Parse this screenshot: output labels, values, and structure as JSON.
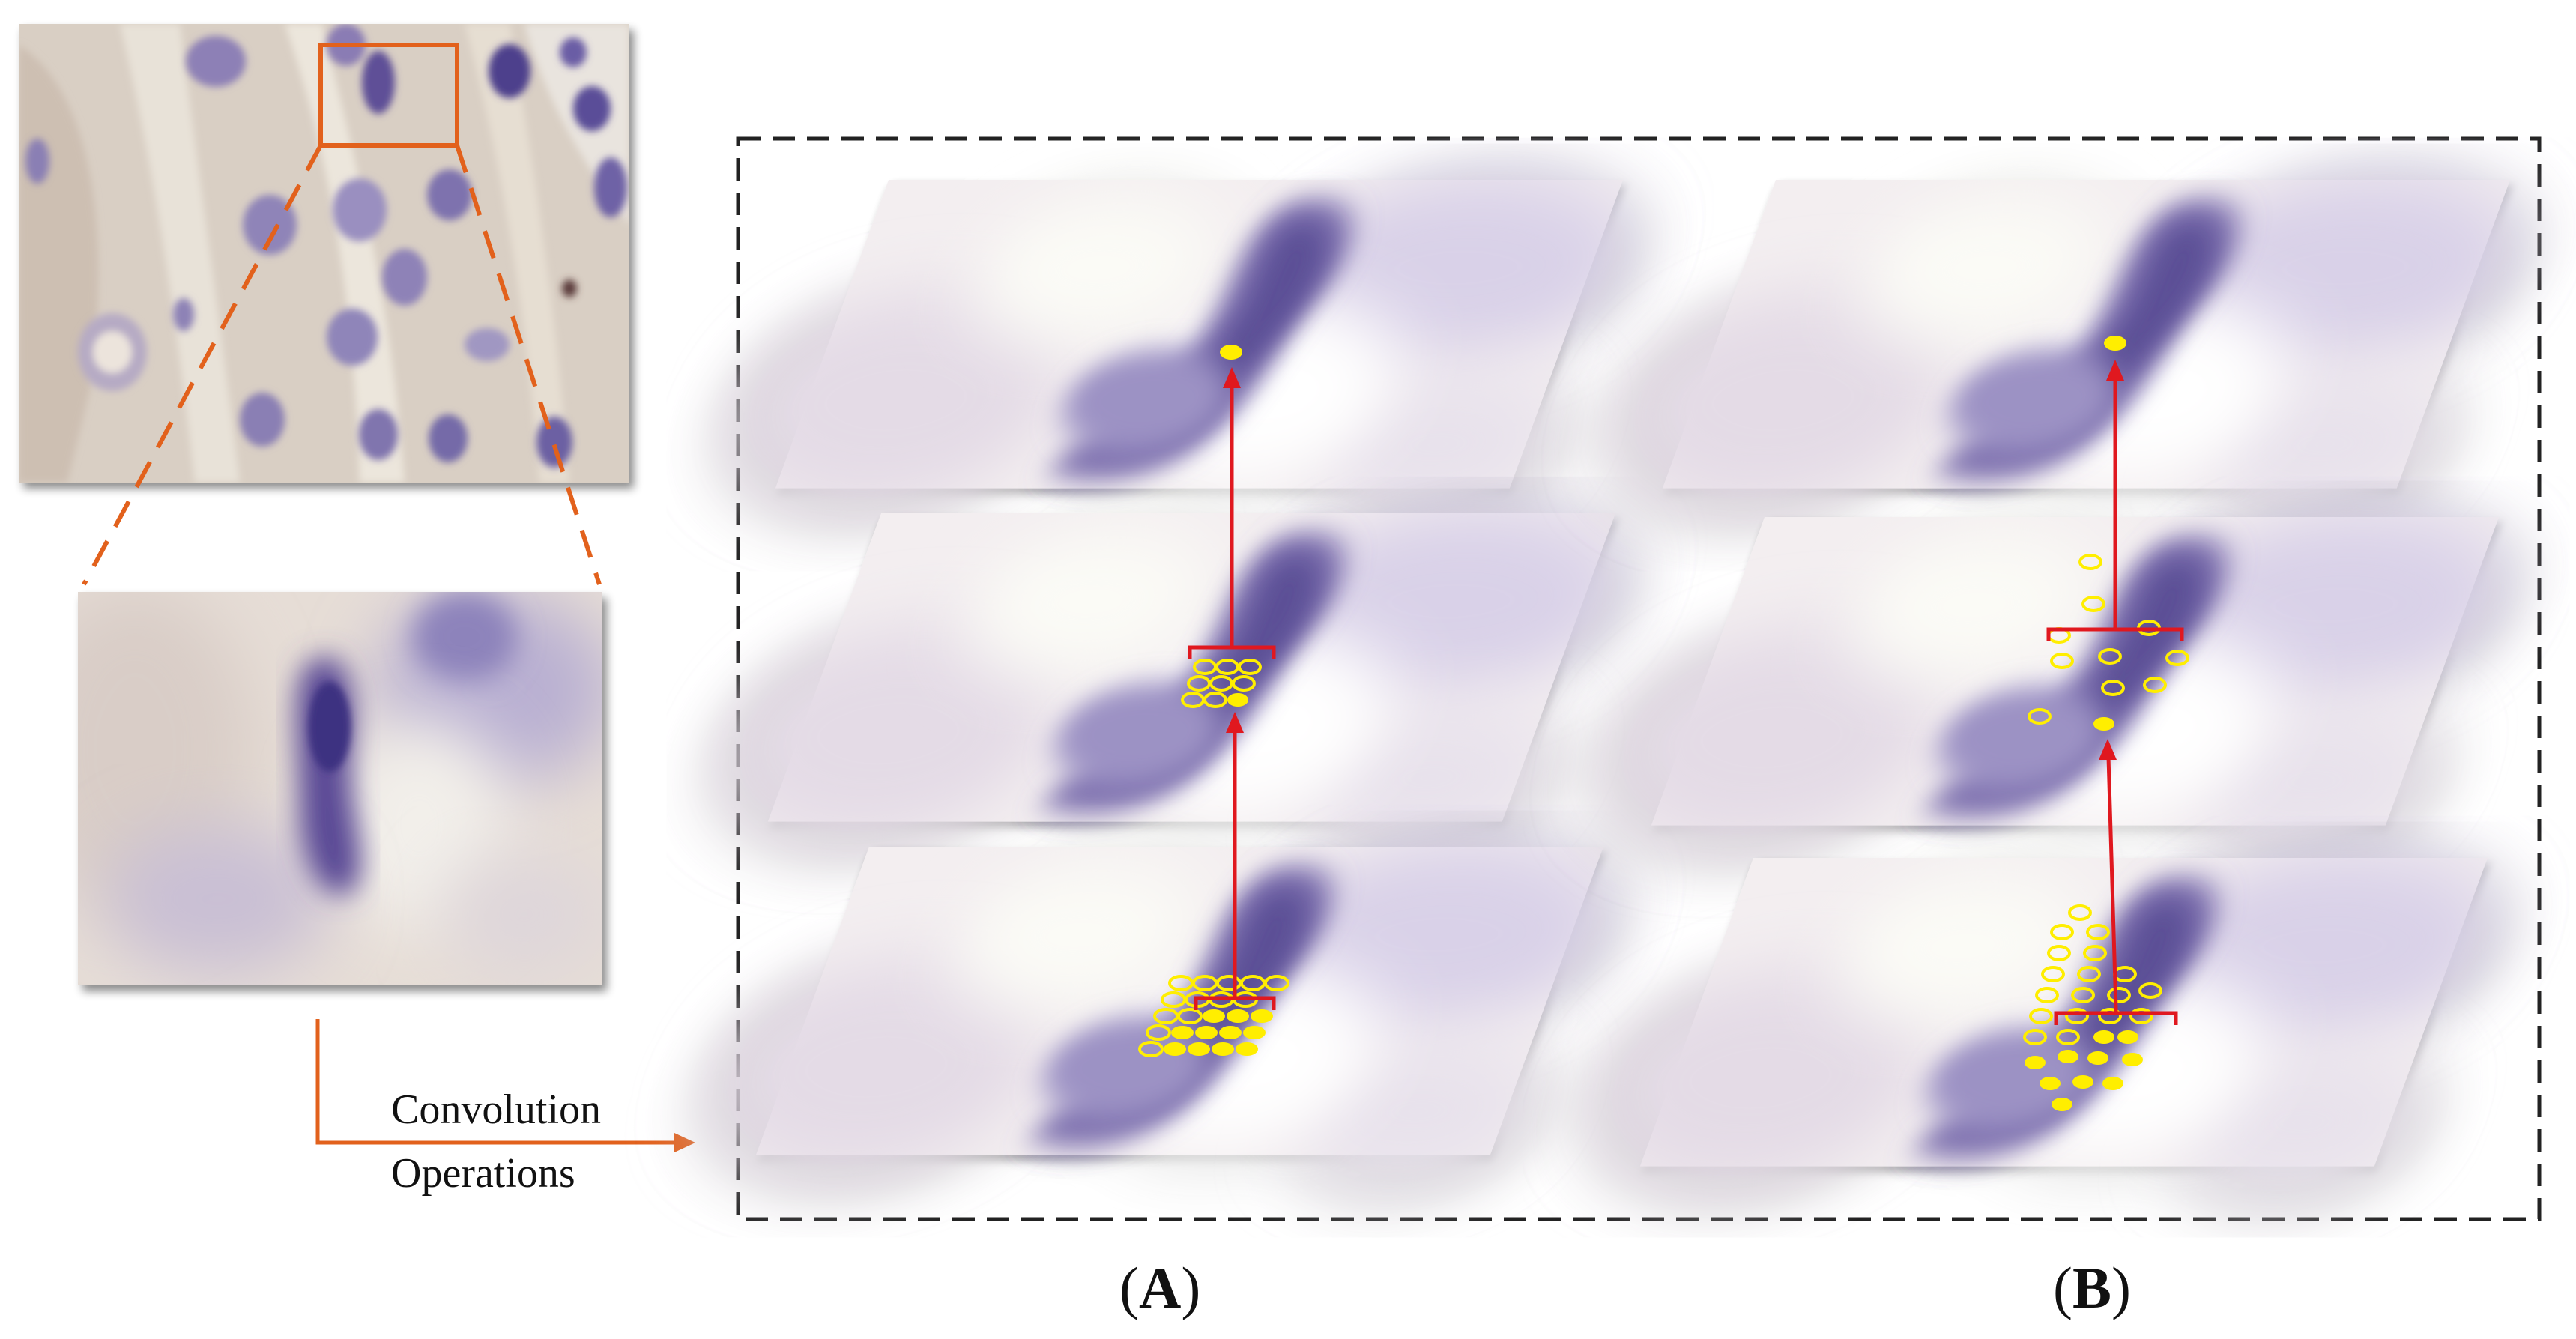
{
  "figure": {
    "convolution_label": {
      "line1": "Convolution",
      "line2": "Operations"
    },
    "panels": [
      {
        "open": "(",
        "letter": "A",
        "close": ")"
      },
      {
        "open": "(",
        "letter": "B",
        "close": ")"
      }
    ]
  },
  "colors": {
    "tissue_background": "#d9cfc4",
    "nucleus": "#5a4f96",
    "zoom_box": "#e2611c",
    "arrow_red": "#e0181f",
    "sampling_yellow": "#ffee00",
    "dashed_border": "#222222"
  }
}
